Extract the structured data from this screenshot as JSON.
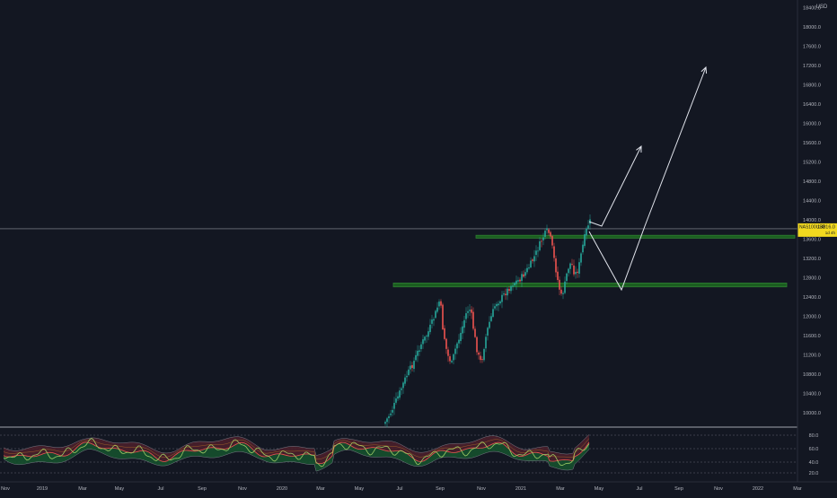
{
  "chart_data": {
    "type": "candlestick",
    "currency": "USD",
    "price_axis": {
      "ticks": [
        18400,
        18000,
        17600,
        17200,
        16800,
        16400,
        16000,
        15600,
        15200,
        14800,
        14400,
        14000,
        13600,
        13200,
        12800,
        12400,
        12000,
        11600,
        11200,
        10800,
        10400,
        10000
      ],
      "tick_labels": [
        "18400.0",
        "18000.0",
        "17600.0",
        "17200.0",
        "16800.0",
        "16400.0",
        "16000.0",
        "15600.0",
        "15200.0",
        "14800.0",
        "14400.0",
        "14000.0",
        "13600.0",
        "13200.0",
        "12800.0",
        "12400.0",
        "12000.0",
        "11600.0",
        "11200.0",
        "10800.0",
        "10400.0",
        "10000.0"
      ]
    },
    "time_axis": {
      "labels": [
        "Nov",
        "2019",
        "Mar",
        "May",
        "Jul",
        "Sep",
        "Nov",
        "2020",
        "Mar",
        "May",
        "Jul",
        "Sep",
        "Nov",
        "2021",
        "Mar",
        "May",
        "Jul",
        "Sep",
        "Nov",
        "2022",
        "Mar"
      ]
    },
    "last_price": {
      "value": 13816.0,
      "symbol_label": "NAS100USD",
      "price_label": "13816.0",
      "sub_label": "1d 4h"
    },
    "support_zones": [
      {
        "name": "resistance-turned-support",
        "price_low": 13620,
        "price_high": 13680,
        "color": "#1b5e20"
      },
      {
        "name": "lower-support",
        "price_low": 12610,
        "price_high": 12690,
        "color": "#1b5e20"
      }
    ],
    "projection_paths": [
      {
        "name": "bullish-continuation",
        "points": [
          [
            13816,
            "Apr 2021"
          ],
          [
            13950,
            "Apr 2021"
          ],
          [
            15620,
            "Jun 2021"
          ]
        ]
      },
      {
        "name": "pullback-then-rally",
        "points": [
          [
            13640,
            "Apr 2021"
          ],
          [
            12650,
            "Jun 2021"
          ],
          [
            13680,
            "Jul 2021"
          ],
          [
            17330,
            "Nov 2021"
          ]
        ]
      }
    ],
    "price_series": [
      {
        "month": "May 2020",
        "close": 9800
      },
      {
        "month": "Jun 2020",
        "close": 10300
      },
      {
        "month": "Jul 2020",
        "close": 10800
      },
      {
        "month": "Aug 2020",
        "close": 11700
      },
      {
        "month": "Sep 2020",
        "close": 11300
      },
      {
        "month": "Oct 2020",
        "close": 11500
      },
      {
        "month": "Nov 2020",
        "close": 12200
      },
      {
        "month": "Dec 2020",
        "close": 12900
      },
      {
        "month": "Jan 2021",
        "close": 13200
      },
      {
        "month": "Feb 2021",
        "close": 13600
      },
      {
        "month": "Mar 2021",
        "close": 12900
      },
      {
        "month": "Apr 2021",
        "close": 13816
      }
    ],
    "oscillator": {
      "ticks": [
        80,
        60,
        40,
        20
      ],
      "tick_labels": [
        "80.0",
        "60.0",
        "40.0",
        "20.0"
      ]
    }
  }
}
